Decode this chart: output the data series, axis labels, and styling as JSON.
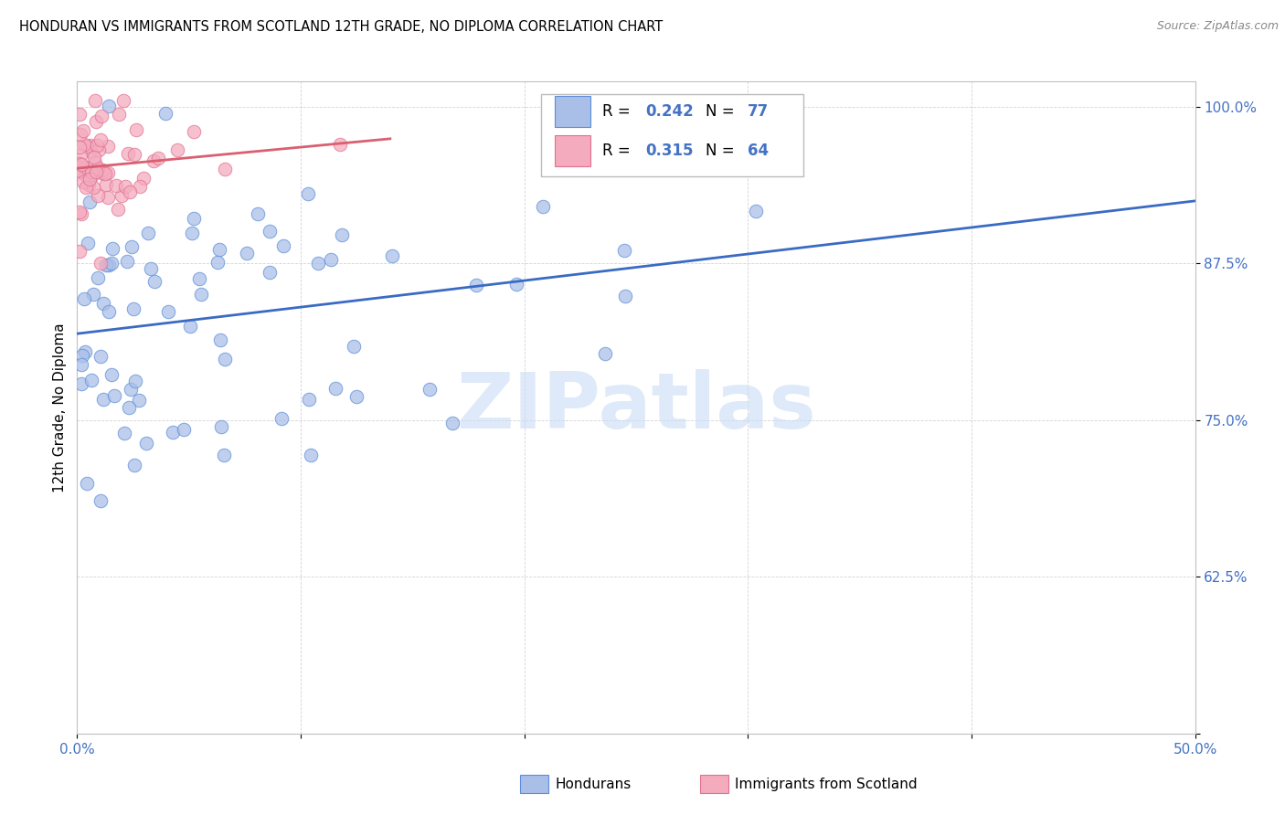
{
  "title": "HONDURAN VS IMMIGRANTS FROM SCOTLAND 12TH GRADE, NO DIPLOMA CORRELATION CHART",
  "source": "Source: ZipAtlas.com",
  "ylabel": "12th Grade, No Diploma",
  "legend_label1": "Hondurans",
  "legend_label2": "Immigrants from Scotland",
  "R1": 0.242,
  "N1": 77,
  "R2": 0.315,
  "N2": 64,
  "xlim": [
    0.0,
    0.5
  ],
  "ylim": [
    0.5,
    1.02
  ],
  "xtick_vals": [
    0.0,
    0.1,
    0.2,
    0.3,
    0.4,
    0.5
  ],
  "xtick_labels": [
    "0.0%",
    "",
    "",
    "",
    "",
    "50.0%"
  ],
  "ytick_vals": [
    0.5,
    0.625,
    0.75,
    0.875,
    1.0
  ],
  "ytick_labels": [
    "",
    "62.5%",
    "75.0%",
    "87.5%",
    "100.0%"
  ],
  "color_blue_fill": "#AABFE8",
  "color_blue_edge": "#5B8DD9",
  "color_pink_fill": "#F4ABBE",
  "color_pink_edge": "#E07090",
  "color_blue_line": "#3A6BC4",
  "color_pink_line": "#D96070",
  "watermark": "ZIPatlas",
  "watermark_color": "#C8DCF5",
  "grid_color": "#C8C8C8",
  "tick_label_color": "#4472C4",
  "source_color": "#888888"
}
